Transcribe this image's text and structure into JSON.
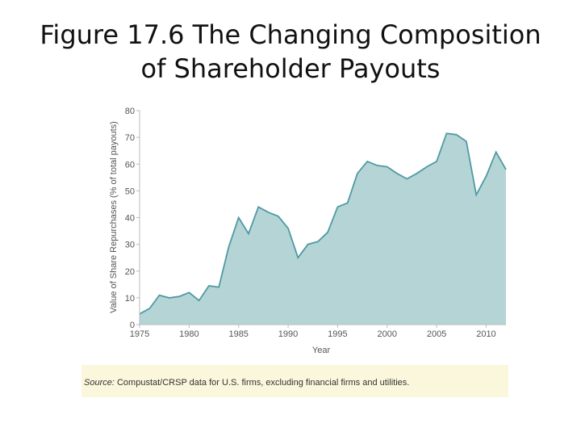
{
  "slide": {
    "title_line1": "Figure 17.6  The Changing Composition",
    "title_line2": "of Shareholder Payouts"
  },
  "chart_data": {
    "type": "area",
    "title": "",
    "xlabel": "Year",
    "ylabel": "Value of Share Repurchases (% of total payouts)",
    "xlim": [
      1975,
      2012
    ],
    "ylim": [
      0,
      80
    ],
    "x_ticks": [
      "1975",
      "1980",
      "1985",
      "1990",
      "1995",
      "2000",
      "2005",
      "2010"
    ],
    "y_ticks": [
      "0",
      "10",
      "20",
      "30",
      "40",
      "50",
      "60",
      "70",
      "80"
    ],
    "grid": false,
    "legend": "none",
    "colors": {
      "fill": "#b5d4d6",
      "line": "#4f9aa3",
      "axis": "#bbbbbb",
      "text": "#555555"
    },
    "x": [
      1975,
      1976,
      1977,
      1978,
      1979,
      1980,
      1981,
      1982,
      1983,
      1984,
      1985,
      1986,
      1987,
      1988,
      1989,
      1990,
      1991,
      1992,
      1993,
      1994,
      1995,
      1996,
      1997,
      1998,
      1999,
      2000,
      2001,
      2002,
      2003,
      2004,
      2005,
      2006,
      2007,
      2008,
      2009,
      2010,
      2011,
      2012
    ],
    "y": [
      4,
      6,
      11,
      10,
      10.5,
      12,
      9,
      14.5,
      14,
      29,
      40,
      34,
      44,
      42,
      40.5,
      36,
      25,
      30,
      31,
      34.5,
      44,
      45.5,
      56.5,
      61,
      59.5,
      59,
      56.5,
      54.5,
      56.5,
      59,
      61,
      71.5,
      71,
      68.5,
      48.5,
      55.5,
      64.5,
      58
    ]
  },
  "source": {
    "label": "Source:",
    "text": " Compustat/CRSP data for U.S. firms, excluding financial firms and utilities."
  }
}
